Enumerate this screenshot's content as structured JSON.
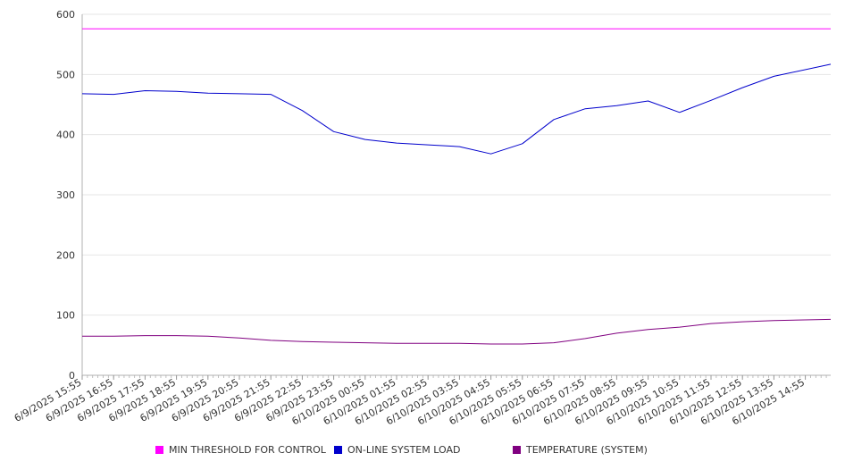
{
  "chart_data": {
    "type": "line",
    "title": "",
    "xlabel": "",
    "ylabel": "",
    "ylim": [
      0,
      600
    ],
    "yticks": [
      0,
      100,
      200,
      300,
      400,
      500,
      600
    ],
    "grid": "horizontal",
    "legend_position": "bottom",
    "x_tick_labels": [
      "6/9/2025 15:55",
      "6/9/2025 16:55",
      "6/9/2025 17:55",
      "6/9/2025 18:55",
      "6/9/2025 19:55",
      "6/9/2025 20:55",
      "6/9/2025 21:55",
      "6/9/2025 22:55",
      "6/9/2025 23:55",
      "6/10/2025 00:55",
      "6/10/2025 01:55",
      "6/10/2025 02:55",
      "6/10/2025 03:55",
      "6/10/2025 04:55",
      "6/10/2025 05:55",
      "6/10/2025 06:55",
      "6/10/2025 07:55",
      "6/10/2025 08:55",
      "6/10/2025 09:55",
      "6/10/2025 10:55",
      "6/10/2025 11:55",
      "6/10/2025 12:55",
      "6/10/2025 13:55",
      "6/10/2025 14:55"
    ],
    "series": [
      {
        "name": "MIN THRESHOLD FOR CONTROL",
        "color": "#ff00ff",
        "values": [
          576,
          576,
          576,
          576,
          576,
          576,
          576,
          576,
          576,
          576,
          576,
          576,
          576,
          576,
          576,
          576,
          576,
          576,
          576,
          576,
          576,
          576,
          576,
          576
        ]
      },
      {
        "name": "ON-LINE SYSTEM LOAD",
        "color": "#0000cc",
        "values": [
          468,
          467,
          473,
          472,
          469,
          468,
          467,
          440,
          405,
          392,
          386,
          383,
          380,
          368,
          385,
          425,
          443,
          448,
          456,
          437,
          457,
          478,
          497,
          517
        ]
      },
      {
        "name": "TEMPERATURE (SYSTEM)",
        "color": "#800080",
        "values": [
          65,
          65,
          66,
          66,
          65,
          62,
          58,
          56,
          55,
          54,
          53,
          53,
          53,
          52,
          52,
          54,
          61,
          70,
          76,
          80,
          86,
          89,
          91,
          93
        ]
      }
    ]
  }
}
